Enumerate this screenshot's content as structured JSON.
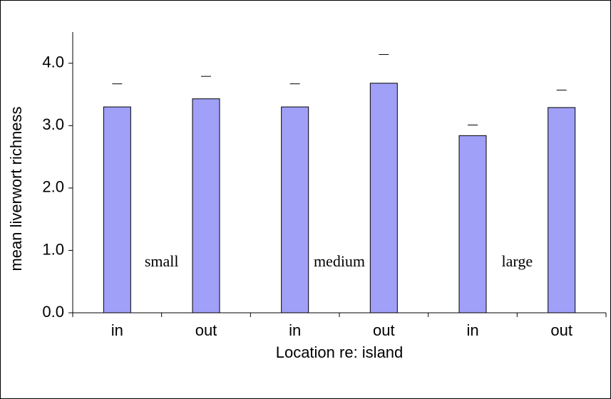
{
  "chart_data": {
    "type": "bar",
    "y_label": "mean liverwort richness",
    "x_label": "Location re: island",
    "categories": [
      "in",
      "out",
      "in",
      "out",
      "in",
      "out"
    ],
    "values": [
      3.3,
      3.43,
      3.3,
      3.68,
      2.84,
      3.29
    ],
    "errors": [
      0.37,
      0.36,
      0.37,
      0.46,
      0.17,
      0.28
    ],
    "group_labels": [
      "small",
      "medium",
      "large"
    ],
    "color": "#a0a0f8",
    "ylim": [
      0,
      4.5
    ],
    "yticks": [
      {
        "value": 0,
        "label": "0.0"
      },
      {
        "value": 1,
        "label": "1.0"
      },
      {
        "value": 2,
        "label": "2.0"
      },
      {
        "value": 3,
        "label": "3.0"
      },
      {
        "value": 4,
        "label": "4.0"
      }
    ]
  }
}
